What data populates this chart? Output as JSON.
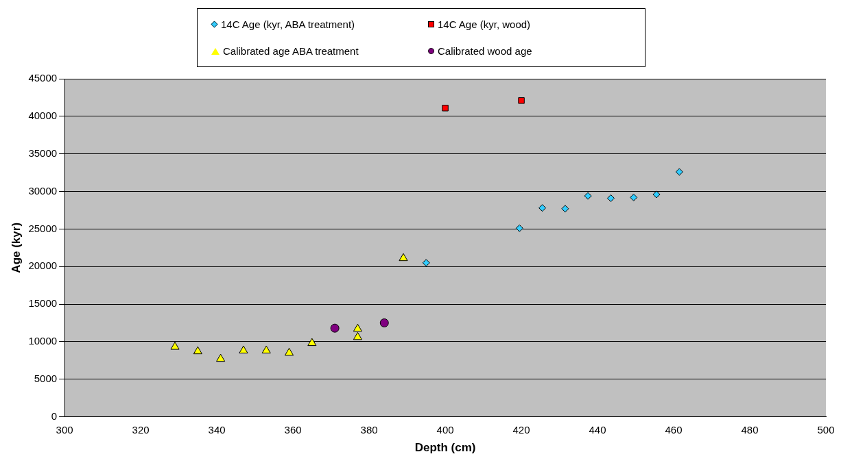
{
  "chart_data": {
    "type": "scatter",
    "xlabel": "Depth (cm)",
    "ylabel": "Age (kyr)",
    "xlim": [
      300,
      500
    ],
    "xticks": [
      300,
      320,
      340,
      360,
      380,
      400,
      420,
      440,
      460,
      480,
      500
    ],
    "ylim": [
      0,
      45000
    ],
    "yticks": [
      0,
      5000,
      10000,
      15000,
      20000,
      25000,
      30000,
      35000,
      40000,
      45000
    ],
    "grid": "y",
    "legend": "top",
    "series": [
      {
        "name": "14C Age (kyr, ABA treatment)",
        "color": "#33ccff",
        "marker": "diamond",
        "x": [
          395,
          419.5,
          425.5,
          431.5,
          437.5,
          443.5,
          449.5,
          455.5,
          461.5
        ],
        "values": [
          20500,
          25100,
          27800,
          27700,
          29400,
          29100,
          29200,
          29600,
          32600
        ]
      },
      {
        "name": "14C Age (kyr, wood)",
        "color": "#ff0000",
        "marker": "square",
        "x": [
          400,
          420
        ],
        "values": [
          41100,
          42100
        ]
      },
      {
        "name": "Calibrated age ABA treatment",
        "color": "#ffff00",
        "marker": "triangle",
        "x": [
          329,
          335,
          341,
          347,
          353,
          359,
          365,
          377,
          377,
          389
        ],
        "values": [
          9300,
          8700,
          7700,
          8800,
          8800,
          8500,
          9800,
          11700,
          10600,
          21100
        ]
      },
      {
        "name": "Calibrated wood age",
        "color": "#800080",
        "marker": "circle",
        "x": [
          371,
          384
        ],
        "values": [
          11800,
          12500
        ]
      }
    ]
  }
}
